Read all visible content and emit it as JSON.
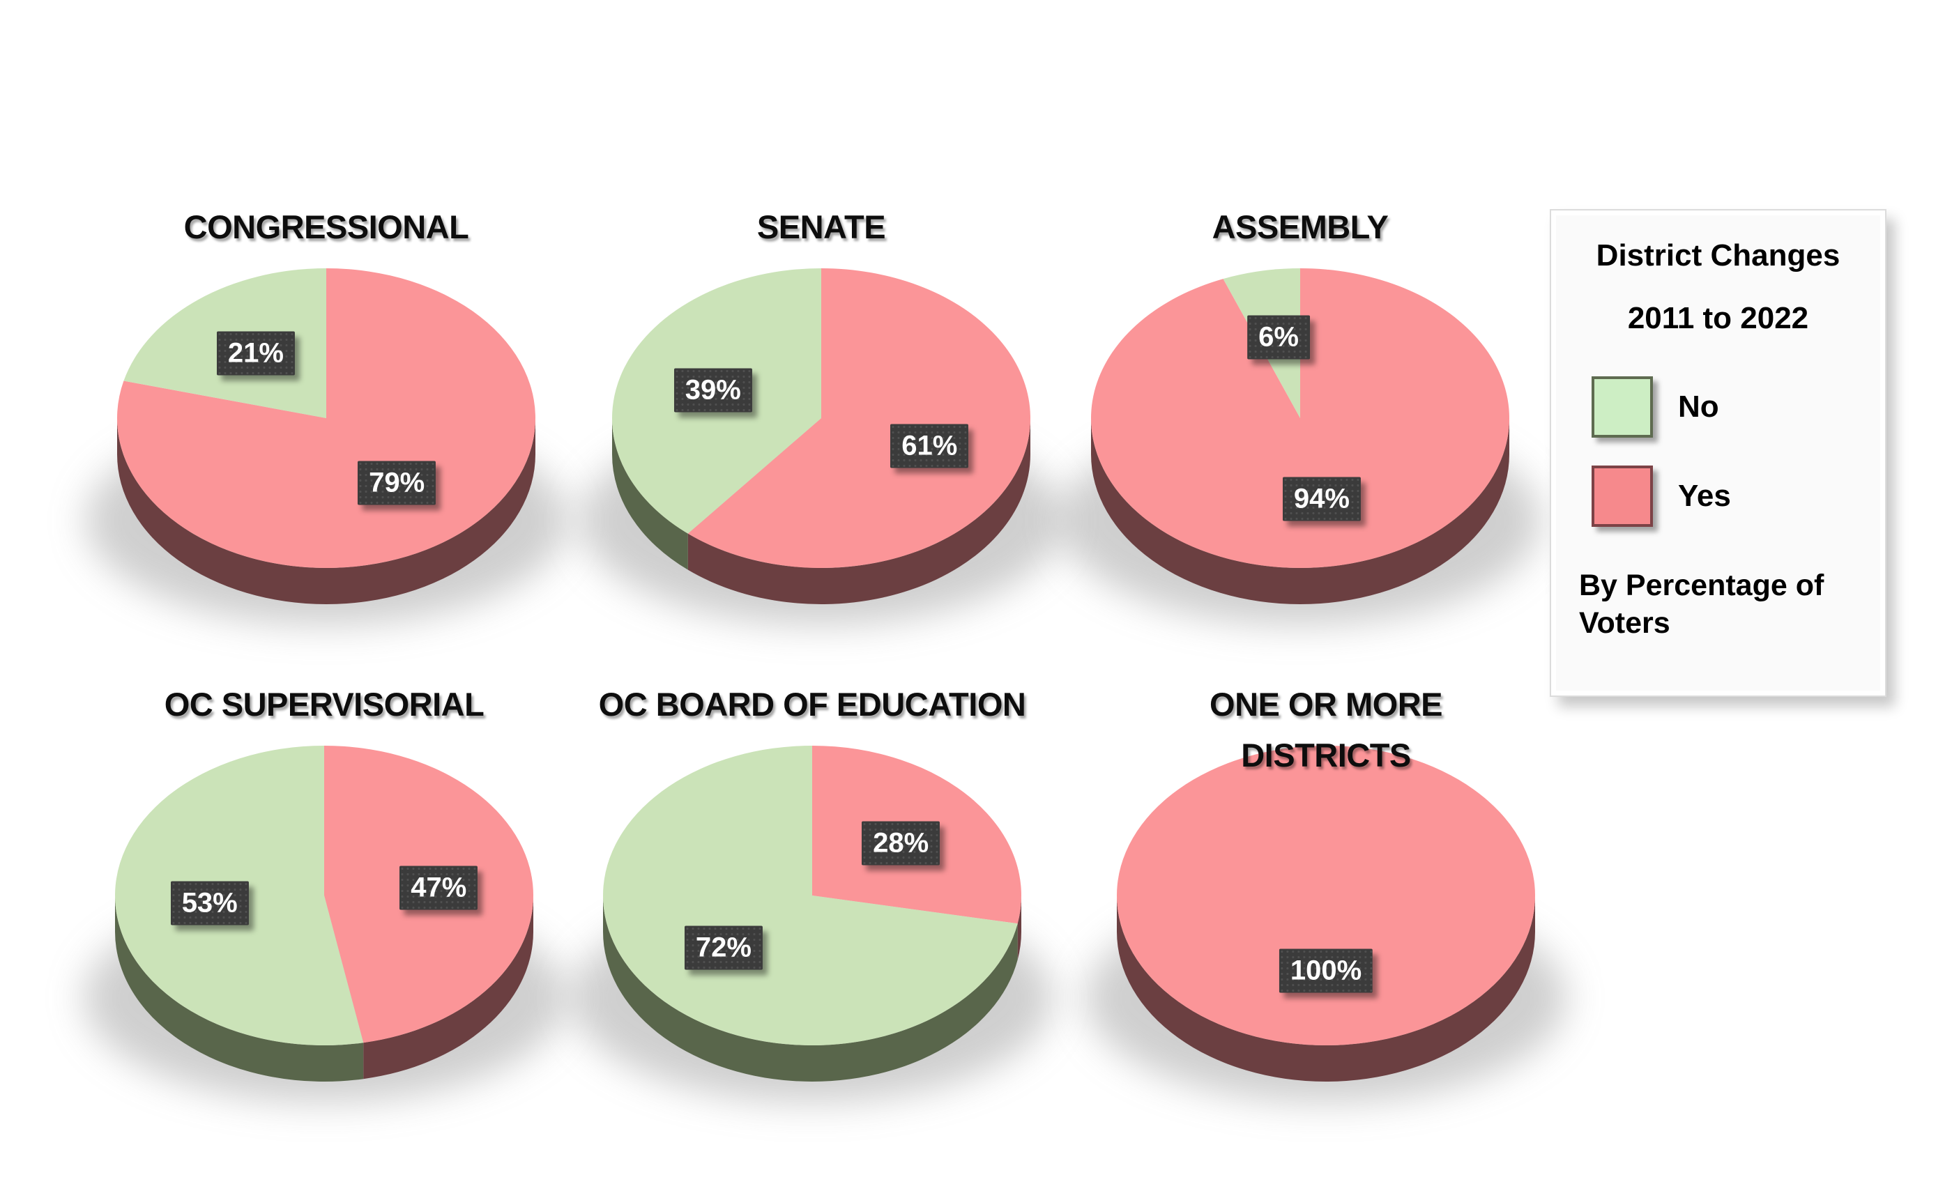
{
  "page": {
    "background": "#ffffff"
  },
  "legend": {
    "title_line1": "District Changes",
    "title_line2": "2011 to 2022",
    "items": [
      {
        "label": "No",
        "swatch_color": "#CDEEC4",
        "swatch_border": "#5E6B50"
      },
      {
        "label": "Yes",
        "swatch_color": "#F6898C",
        "swatch_border": "#7C4246"
      }
    ],
    "footer": "By Percentage of Voters"
  },
  "colors": {
    "yes": "#FB9598",
    "no": "#CBE3B8",
    "yes_side": "#6B3F41",
    "no_side": "#59664B",
    "label_bg": "#3B3B3B",
    "label_text": "#FFFFFF"
  },
  "chart_data": [
    {
      "type": "pie",
      "title": "CONGRESSIONAL",
      "slices": [
        {
          "name": "Yes",
          "value": 79,
          "label": "79%"
        },
        {
          "name": "No",
          "value": 21,
          "label": "21%"
        }
      ]
    },
    {
      "type": "pie",
      "title": "SENATE",
      "slices": [
        {
          "name": "Yes",
          "value": 61,
          "label": "61%"
        },
        {
          "name": "No",
          "value": 39,
          "label": "39%"
        }
      ]
    },
    {
      "type": "pie",
      "title": "ASSEMBLY",
      "slices": [
        {
          "name": "Yes",
          "value": 94,
          "label": "94%"
        },
        {
          "name": "No",
          "value": 6,
          "label": "6%"
        }
      ]
    },
    {
      "type": "pie",
      "title": "OC SUPERVISORIAL",
      "slices": [
        {
          "name": "Yes",
          "value": 47,
          "label": "47%"
        },
        {
          "name": "No",
          "value": 53,
          "label": "53%"
        }
      ]
    },
    {
      "type": "pie",
      "title": "OC BOARD OF EDUCATION",
      "slices": [
        {
          "name": "Yes",
          "value": 28,
          "label": "28%"
        },
        {
          "name": "No",
          "value": 72,
          "label": "72%"
        }
      ]
    },
    {
      "type": "pie",
      "title": "ONE OR MORE DISTRICTS",
      "slices": [
        {
          "name": "Yes",
          "value": 100,
          "label": "100%"
        }
      ]
    }
  ]
}
